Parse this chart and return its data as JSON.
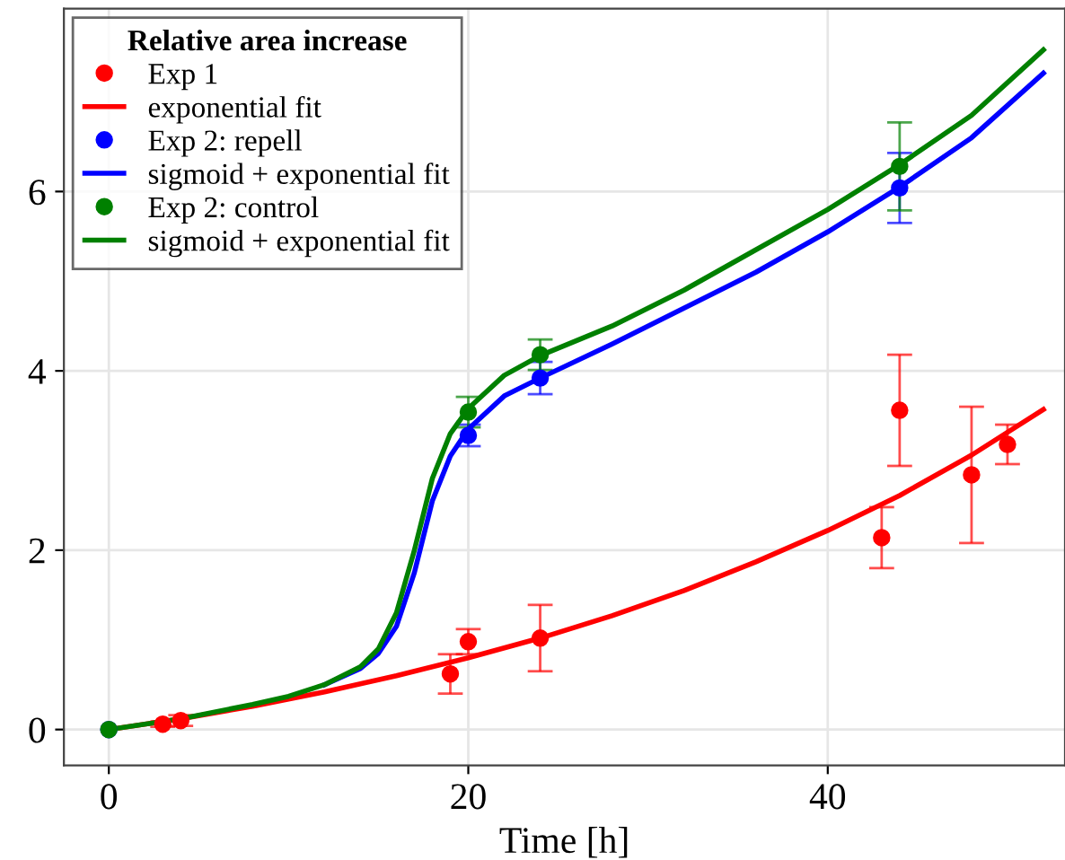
{
  "chart_data": {
    "type": "line",
    "xlabel": "Time [h]",
    "legend_title": "Relative area increase",
    "legend": "top left",
    "grid": true,
    "xlim": [
      -2.5,
      53.2
    ],
    "ylim": [
      -0.4,
      8.04
    ],
    "xticks": [
      0,
      20,
      40
    ],
    "yticks": [
      0,
      2,
      4,
      6
    ],
    "series": [
      {
        "name": "Exp 1",
        "type": "scatter",
        "marker": "circle",
        "color": "#ff0000",
        "x": [
          3,
          4,
          19,
          20,
          24,
          43,
          44,
          48,
          50
        ],
        "values": [
          0.06,
          0.1,
          0.62,
          0.98,
          1.02,
          2.14,
          3.56,
          2.84,
          3.18
        ],
        "errors": [
          0.03,
          0.06,
          0.22,
          0.14,
          0.37,
          0.34,
          0.62,
          0.76,
          0.22
        ]
      },
      {
        "name": "exponential fit",
        "color": "#ff0000",
        "x": [
          0,
          4,
          8,
          12,
          16,
          20,
          24,
          28,
          32,
          36,
          40,
          44,
          48,
          52
        ],
        "values": [
          0,
          0.12,
          0.26,
          0.42,
          0.6,
          0.8,
          1.02,
          1.27,
          1.55,
          1.87,
          2.22,
          2.61,
          3.06,
          3.57
        ]
      },
      {
        "name": "Exp 2: repell",
        "type": "scatter",
        "marker": "circle",
        "color": "#0000ff",
        "x": [
          0,
          20,
          24,
          44
        ],
        "values": [
          0,
          3.28,
          3.92,
          6.04
        ],
        "errors": [
          null,
          0.12,
          0.18,
          0.39
        ]
      },
      {
        "name": "sigmoid + exponential fit",
        "color": "#0000ff",
        "x": [
          12,
          14,
          15,
          16,
          17,
          18,
          19,
          20,
          22,
          24,
          28,
          32,
          36,
          40,
          44,
          48,
          52
        ],
        "values": [
          0.5,
          0.68,
          0.85,
          1.15,
          1.75,
          2.55,
          3.05,
          3.35,
          3.72,
          3.92,
          4.3,
          4.7,
          5.1,
          5.55,
          6.05,
          6.6,
          7.32
        ]
      },
      {
        "name": "Exp 2: control",
        "type": "scatter",
        "marker": "circle",
        "color": "#008000",
        "x": [
          0,
          20,
          24,
          44
        ],
        "values": [
          0,
          3.54,
          4.18,
          6.28
        ],
        "errors": [
          null,
          0.17,
          0.17,
          0.49
        ]
      },
      {
        "name": "sigmoid + exponential fit",
        "color": "#008000",
        "x": [
          0,
          4,
          8,
          10,
          12,
          14,
          15,
          16,
          17,
          18,
          19,
          20,
          22,
          24,
          28,
          32,
          36,
          40,
          44,
          48,
          52
        ],
        "values": [
          0,
          0.12,
          0.28,
          0.37,
          0.5,
          0.7,
          0.9,
          1.3,
          2.0,
          2.8,
          3.3,
          3.58,
          3.95,
          4.17,
          4.5,
          4.9,
          5.35,
          5.8,
          6.3,
          6.85,
          7.58
        ]
      }
    ]
  }
}
